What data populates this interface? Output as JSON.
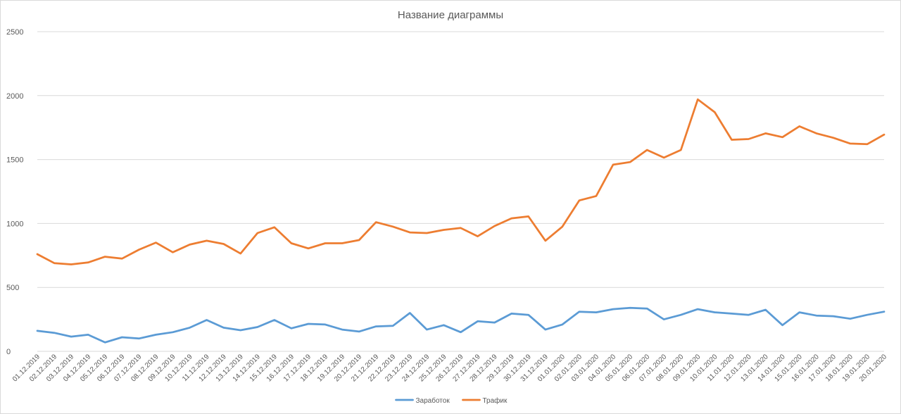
{
  "chart_data": {
    "type": "line",
    "title": "Название диаграммы",
    "xlabel": "",
    "ylabel": "",
    "ylim": [
      0,
      2500
    ],
    "yticks": [
      0,
      500,
      1000,
      1500,
      2000,
      2500
    ],
    "grid": true,
    "legend_position": "bottom",
    "categories": [
      "01.12.2019",
      "02.12.2019",
      "03.12.2019",
      "04.12.2019",
      "05.12.2019",
      "06.12.2019",
      "07.12.2019",
      "08.12.2019",
      "09.12.2019",
      "10.12.2019",
      "11.12.2019",
      "12.12.2019",
      "13.12.2019",
      "14.12.2019",
      "15.12.2019",
      "16.12.2019",
      "17.12.2019",
      "18.12.2019",
      "19.12.2019",
      "20.12.2019",
      "21.12.2019",
      "22.12.2019",
      "23.12.2019",
      "24.12.2019",
      "25.12.2019",
      "26.12.2019",
      "27.12.2019",
      "28.12.2019",
      "29.12.2019",
      "30.12.2019",
      "31.12.2019",
      "01.01.2020",
      "02.01.2020",
      "03.01.2020",
      "04.01.2020",
      "05.01.2020",
      "06.01.2020",
      "07.01.2020",
      "08.01.2020",
      "09.01.2020",
      "10.01.2020",
      "11.01.2020",
      "12.01.2020",
      "13.01.2020",
      "14.01.2020",
      "15.01.2020",
      "16.01.2020",
      "17.01.2020",
      "18.01.2020",
      "19.01.2020",
      "20.01.2020"
    ],
    "series": [
      {
        "name": "Заработок",
        "color": "#5b9bd5",
        "values": [
          160,
          145,
          115,
          130,
          70,
          110,
          100,
          130,
          150,
          185,
          245,
          185,
          165,
          190,
          245,
          180,
          215,
          210,
          170,
          155,
          195,
          200,
          300,
          170,
          205,
          150,
          235,
          225,
          295,
          285,
          170,
          210,
          310,
          305,
          330,
          340,
          335,
          250,
          285,
          330,
          305,
          295,
          285,
          325,
          205,
          305,
          280,
          275,
          255,
          285,
          310
        ]
      },
      {
        "name": "Трафик",
        "color": "#ed7d31",
        "values": [
          760,
          690,
          680,
          695,
          740,
          725,
          795,
          850,
          775,
          835,
          865,
          840,
          765,
          925,
          970,
          845,
          805,
          845,
          845,
          870,
          1010,
          975,
          930,
          925,
          950,
          965,
          900,
          980,
          1040,
          1055,
          865,
          975,
          1180,
          1215,
          1460,
          1480,
          1575,
          1515,
          1575,
          1970,
          1870,
          1655,
          1660,
          1705,
          1675,
          1760,
          1705,
          1670,
          1625,
          1620,
          1695
        ]
      }
    ]
  }
}
